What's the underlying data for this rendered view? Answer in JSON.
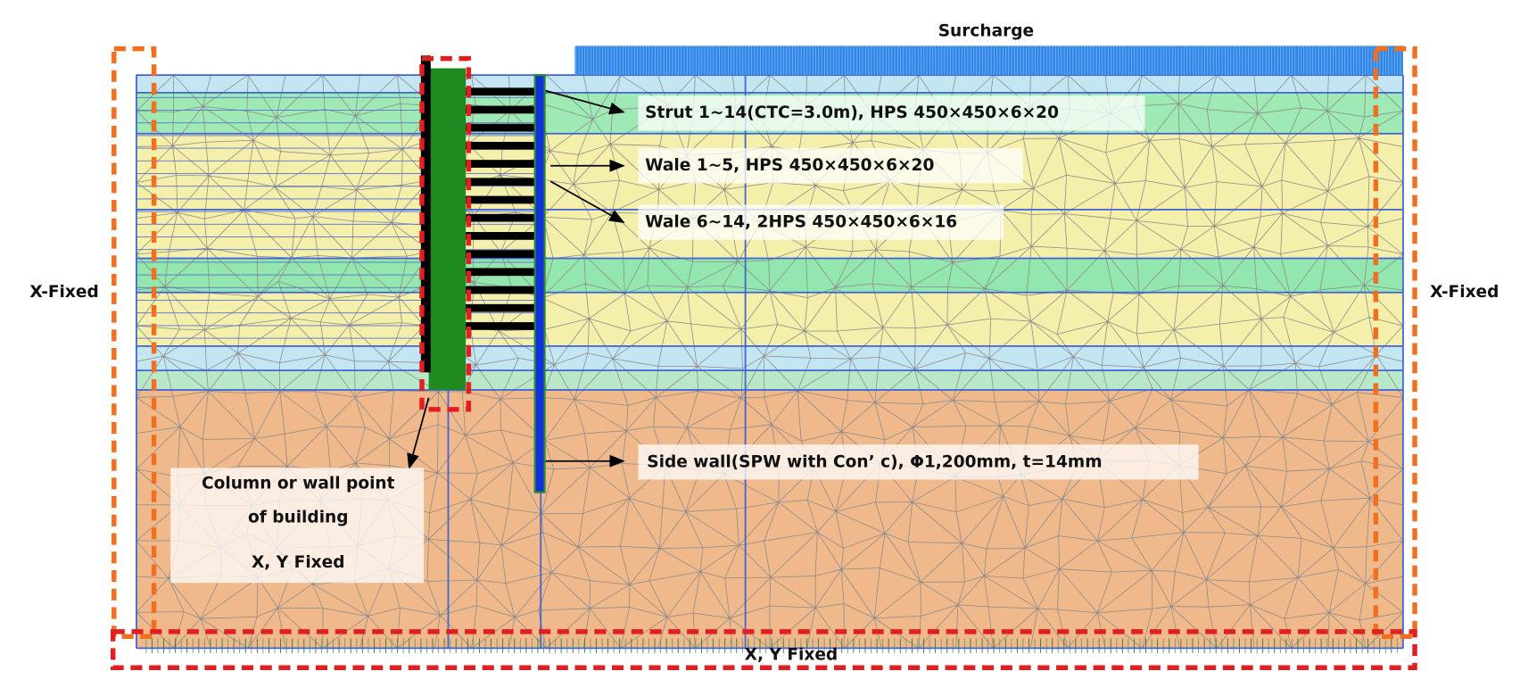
{
  "diagram": {
    "surcharge": "Surcharge",
    "callouts": [
      "Strut 1~14(CTC=3.0m), HPS 450×450×6×20",
      "Wale 1~5, HPS 450×450×6×20",
      "Wale 6~14, 2HPS 450×450×6×16",
      "Side wall(SPW with Con’ c), Φ1,200mm, t=14mm"
    ],
    "building_note": [
      "Column or wall point",
      "of building",
      "X, Y Fixed"
    ],
    "boundaries": {
      "left": "X-Fixed",
      "right": "X-Fixed",
      "bottom": "X, Y Fixed"
    }
  }
}
